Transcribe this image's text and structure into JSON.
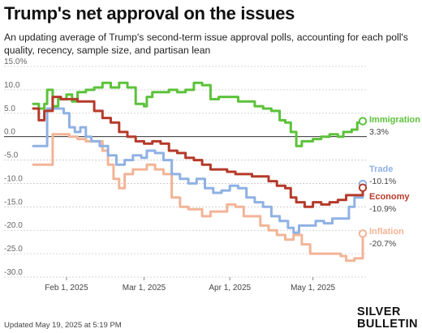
{
  "header": {
    "title": "Trump's net approval on the issues",
    "subtitle": "An updating average of Trump's second-term issue approval polls, accounting for each poll's quality, recency, sample size, and partisan lean"
  },
  "footer": {
    "updated": "Updated May 19, 2025 at 5:19 PM",
    "brand_line1": "SILVER",
    "brand_line2": "BULLETIN"
  },
  "chart_data": {
    "type": "line",
    "title": "",
    "xlabel": "",
    "ylabel": "",
    "ylim": [
      -30,
      15
    ],
    "xlim": [
      "2025-01-20",
      "2025-05-19"
    ],
    "yticks": [
      15,
      10,
      5,
      0,
      -5,
      -10,
      -15,
      -20,
      -25,
      -30
    ],
    "ytick_labels": [
      "15.0%",
      "10.0",
      "5.0",
      "0.0",
      "-5.0",
      "-10.0",
      "-15.0",
      "-20.0",
      "-25.0",
      "-30.0"
    ],
    "xticks": [
      {
        "date": "2025-02-01",
        "label": "Feb 1, 2025"
      },
      {
        "date": "2025-03-01",
        "label": "Mar 1, 2025"
      },
      {
        "date": "2025-04-01",
        "label": "Apr 1, 2025"
      },
      {
        "date": "2025-05-01",
        "label": "May 1, 2025"
      }
    ],
    "zero_line": true,
    "grid": "horizontal dashed",
    "series": [
      {
        "name": "Immigration",
        "value_label": "3.3%",
        "color": "#5cc23a",
        "points": [
          [
            "2025-01-20",
            7
          ],
          [
            "2025-01-22",
            6
          ],
          [
            "2025-01-24",
            7
          ],
          [
            "2025-01-25",
            10
          ],
          [
            "2025-01-27",
            6.5
          ],
          [
            "2025-01-29",
            8
          ],
          [
            "2025-02-01",
            9
          ],
          [
            "2025-02-03",
            7.5
          ],
          [
            "2025-02-05",
            9.5
          ],
          [
            "2025-02-08",
            10
          ],
          [
            "2025-02-11",
            10.5
          ],
          [
            "2025-02-14",
            11.5
          ],
          [
            "2025-02-17",
            10.5
          ],
          [
            "2025-02-20",
            11.5
          ],
          [
            "2025-02-23",
            10.5
          ],
          [
            "2025-02-26",
            7
          ],
          [
            "2025-03-01",
            6.5
          ],
          [
            "2025-03-02",
            8.5
          ],
          [
            "2025-03-04",
            9.5
          ],
          [
            "2025-03-07",
            9.5
          ],
          [
            "2025-03-10",
            10
          ],
          [
            "2025-03-13",
            9.5
          ],
          [
            "2025-03-16",
            10
          ],
          [
            "2025-03-19",
            11.5
          ],
          [
            "2025-03-22",
            11
          ],
          [
            "2025-03-25",
            8
          ],
          [
            "2025-03-28",
            8.5
          ],
          [
            "2025-04-01",
            8.5
          ],
          [
            "2025-04-04",
            7.5
          ],
          [
            "2025-04-07",
            7.5
          ],
          [
            "2025-04-10",
            6.5
          ],
          [
            "2025-04-13",
            6
          ],
          [
            "2025-04-16",
            5.5
          ],
          [
            "2025-04-19",
            3.5
          ],
          [
            "2025-04-21",
            3
          ],
          [
            "2025-04-23",
            1
          ],
          [
            "2025-04-25",
            -2
          ],
          [
            "2025-04-27",
            -1
          ],
          [
            "2025-04-29",
            -1
          ],
          [
            "2025-05-01",
            -0.5
          ],
          [
            "2025-05-04",
            0
          ],
          [
            "2025-05-07",
            0.5
          ],
          [
            "2025-05-10",
            0
          ],
          [
            "2025-05-12",
            1
          ],
          [
            "2025-05-15",
            1.5
          ],
          [
            "2025-05-17",
            3
          ],
          [
            "2025-05-19",
            3.3
          ]
        ]
      },
      {
        "name": "Trade",
        "value_label": "-10.1%",
        "color": "#8fb1e4",
        "points": [
          [
            "2025-01-20",
            -2
          ],
          [
            "2025-01-23",
            -2
          ],
          [
            "2025-01-25",
            6
          ],
          [
            "2025-01-28",
            6
          ],
          [
            "2025-01-31",
            5
          ],
          [
            "2025-02-02",
            2
          ],
          [
            "2025-02-04",
            1
          ],
          [
            "2025-02-06",
            2
          ],
          [
            "2025-02-08",
            0
          ],
          [
            "2025-02-10",
            -1
          ],
          [
            "2025-02-13",
            -2
          ],
          [
            "2025-02-16",
            -4
          ],
          [
            "2025-02-19",
            -6
          ],
          [
            "2025-02-22",
            -5
          ],
          [
            "2025-02-25",
            -4
          ],
          [
            "2025-02-28",
            -4.5
          ],
          [
            "2025-03-02",
            -3
          ],
          [
            "2025-03-05",
            -3.5
          ],
          [
            "2025-03-08",
            -5
          ],
          [
            "2025-03-11",
            -8
          ],
          [
            "2025-03-14",
            -9
          ],
          [
            "2025-03-17",
            -10
          ],
          [
            "2025-03-20",
            -9
          ],
          [
            "2025-03-23",
            -11
          ],
          [
            "2025-03-26",
            -12
          ],
          [
            "2025-03-29",
            -11.5
          ],
          [
            "2025-04-01",
            -10.5
          ],
          [
            "2025-04-04",
            -11
          ],
          [
            "2025-04-07",
            -13
          ],
          [
            "2025-04-10",
            -14
          ],
          [
            "2025-04-13",
            -15
          ],
          [
            "2025-04-16",
            -17
          ],
          [
            "2025-04-19",
            -18
          ],
          [
            "2025-04-22",
            -19.5
          ],
          [
            "2025-04-24",
            -20.5
          ],
          [
            "2025-04-26",
            -19
          ],
          [
            "2025-04-29",
            -19
          ],
          [
            "2025-05-02",
            -18
          ],
          [
            "2025-05-05",
            -18.5
          ],
          [
            "2025-05-08",
            -17.5
          ],
          [
            "2025-05-11",
            -17.5
          ],
          [
            "2025-05-14",
            -15
          ],
          [
            "2025-05-16",
            -13
          ],
          [
            "2025-05-19",
            -10.1
          ]
        ]
      },
      {
        "name": "Economy",
        "value_label": "-10.9%",
        "color": "#b53a2a",
        "points": [
          [
            "2025-01-20",
            6
          ],
          [
            "2025-01-22",
            3.5
          ],
          [
            "2025-01-24",
            5.5
          ],
          [
            "2025-01-27",
            8.5
          ],
          [
            "2025-01-30",
            8
          ],
          [
            "2025-02-02",
            8
          ],
          [
            "2025-02-05",
            7.5
          ],
          [
            "2025-02-08",
            7.5
          ],
          [
            "2025-02-11",
            5.5
          ],
          [
            "2025-02-14",
            4
          ],
          [
            "2025-02-17",
            3
          ],
          [
            "2025-02-20",
            1
          ],
          [
            "2025-02-23",
            0
          ],
          [
            "2025-02-26",
            -1
          ],
          [
            "2025-03-01",
            -1.5
          ],
          [
            "2025-03-04",
            -1
          ],
          [
            "2025-03-07",
            -1.5
          ],
          [
            "2025-03-10",
            -3
          ],
          [
            "2025-03-13",
            -3.5
          ],
          [
            "2025-03-16",
            -4.5
          ],
          [
            "2025-03-19",
            -5
          ],
          [
            "2025-03-22",
            -6
          ],
          [
            "2025-03-25",
            -7
          ],
          [
            "2025-03-28",
            -7
          ],
          [
            "2025-03-31",
            -7.5
          ],
          [
            "2025-04-03",
            -8
          ],
          [
            "2025-04-06",
            -8
          ],
          [
            "2025-04-09",
            -8.5
          ],
          [
            "2025-04-12",
            -8.5
          ],
          [
            "2025-04-15",
            -9.5
          ],
          [
            "2025-04-18",
            -10.5
          ],
          [
            "2025-04-21",
            -11
          ],
          [
            "2025-04-23",
            -13
          ],
          [
            "2025-04-25",
            -14
          ],
          [
            "2025-04-28",
            -15
          ],
          [
            "2025-05-01",
            -14
          ],
          [
            "2025-05-04",
            -14.5
          ],
          [
            "2025-05-07",
            -14
          ],
          [
            "2025-05-10",
            -13.5
          ],
          [
            "2025-05-13",
            -12.5
          ],
          [
            "2025-05-16",
            -12.5
          ],
          [
            "2025-05-19",
            -10.9
          ]
        ]
      },
      {
        "name": "Inflation",
        "value_label": "-20.7%",
        "color": "#f2b497",
        "points": [
          [
            "2025-01-20",
            -6
          ],
          [
            "2025-01-23",
            -6
          ],
          [
            "2025-01-25",
            -6
          ],
          [
            "2025-01-27",
            0.5
          ],
          [
            "2025-01-30",
            0.5
          ],
          [
            "2025-02-02",
            0
          ],
          [
            "2025-02-05",
            -0.5
          ],
          [
            "2025-02-08",
            -1
          ],
          [
            "2025-02-11",
            -1
          ],
          [
            "2025-02-14",
            -3
          ],
          [
            "2025-02-16",
            -6
          ],
          [
            "2025-02-18",
            -9
          ],
          [
            "2025-02-20",
            -11
          ],
          [
            "2025-02-22",
            -8
          ],
          [
            "2025-02-25",
            -7
          ],
          [
            "2025-02-28",
            -7
          ],
          [
            "2025-03-02",
            -6
          ],
          [
            "2025-03-05",
            -7
          ],
          [
            "2025-03-08",
            -8
          ],
          [
            "2025-03-11",
            -13
          ],
          [
            "2025-03-14",
            -15
          ],
          [
            "2025-03-17",
            -15.5
          ],
          [
            "2025-03-20",
            -15.5
          ],
          [
            "2025-03-22",
            -17
          ],
          [
            "2025-03-25",
            -16
          ],
          [
            "2025-03-28",
            -16
          ],
          [
            "2025-03-31",
            -14.5
          ],
          [
            "2025-04-03",
            -15
          ],
          [
            "2025-04-06",
            -17
          ],
          [
            "2025-04-09",
            -17
          ],
          [
            "2025-04-12",
            -19
          ],
          [
            "2025-04-15",
            -20
          ],
          [
            "2025-04-18",
            -21
          ],
          [
            "2025-04-21",
            -22
          ],
          [
            "2025-04-24",
            -21
          ],
          [
            "2025-04-27",
            -23
          ],
          [
            "2025-04-30",
            -25
          ],
          [
            "2025-05-03",
            -25
          ],
          [
            "2025-05-06",
            -25
          ],
          [
            "2025-05-09",
            -25
          ],
          [
            "2025-05-11",
            -25.5
          ],
          [
            "2025-05-13",
            -26.5
          ],
          [
            "2025-05-16",
            -26
          ],
          [
            "2025-05-18",
            -26
          ],
          [
            "2025-05-19",
            -20.7
          ]
        ]
      }
    ]
  }
}
